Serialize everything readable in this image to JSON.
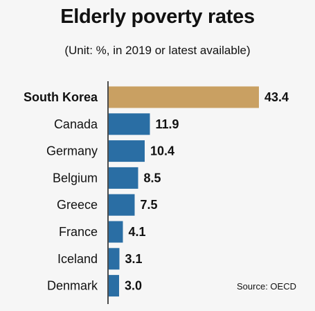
{
  "chart_data": {
    "type": "bar",
    "orientation": "horizontal",
    "title": "Elderly poverty rates",
    "subtitle": "(Unit: %, in 2019 or latest available)",
    "categories": [
      "South Korea",
      "Canada",
      "Germany",
      "Belgium",
      "Greece",
      "France",
      "Iceland",
      "Denmark"
    ],
    "values": [
      43.4,
      11.9,
      10.4,
      8.5,
      7.5,
      4.1,
      3.1,
      3.0
    ],
    "value_labels": [
      "43.4",
      "11.9",
      "10.4",
      "8.5",
      "7.5",
      "4.1",
      "3.1",
      "3.0"
    ],
    "highlight_category": "South Korea",
    "colors": {
      "highlight": "#c9a062",
      "default": "#2a6ea4",
      "axis": "#222222"
    },
    "xlim": [
      0,
      43.4
    ],
    "grid": false,
    "legend": "none",
    "source": "Source: OECD"
  }
}
